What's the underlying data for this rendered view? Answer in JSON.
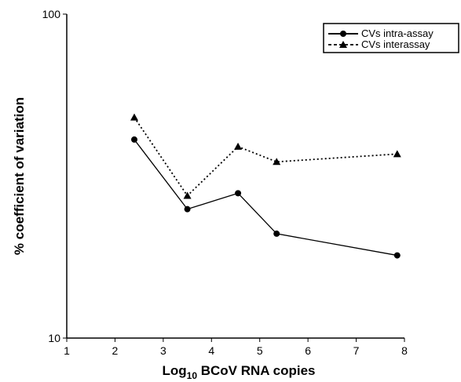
{
  "chart_data": {
    "type": "line",
    "xlabel_prefix": "Log",
    "xlabel_sub": "10",
    "xlabel_rest": " BCoV RNA copies",
    "ylabel": "% coefficient of variation",
    "xlim": [
      1,
      8
    ],
    "ylim": [
      10,
      100
    ],
    "y_scale": "log",
    "x_ticks": [
      "1",
      "2",
      "3",
      "4",
      "5",
      "6",
      "7",
      "8"
    ],
    "y_ticks": [
      "10",
      "100"
    ],
    "grid": false,
    "legend_position": "top-right",
    "series": [
      {
        "name": "CVs intra-assay",
        "line_style": "solid",
        "marker": "circle",
        "color": "#000000",
        "points": [
          [
            2.4,
            41
          ],
          [
            3.5,
            25
          ],
          [
            4.55,
            28
          ],
          [
            5.35,
            21
          ],
          [
            7.85,
            18
          ]
        ]
      },
      {
        "name": "CVs interassay",
        "line_style": "dotted",
        "marker": "triangle",
        "color": "#000000",
        "points": [
          [
            2.4,
            48
          ],
          [
            3.5,
            27.5
          ],
          [
            4.55,
            39
          ],
          [
            5.35,
            35
          ],
          [
            7.85,
            37
          ]
        ]
      }
    ]
  }
}
